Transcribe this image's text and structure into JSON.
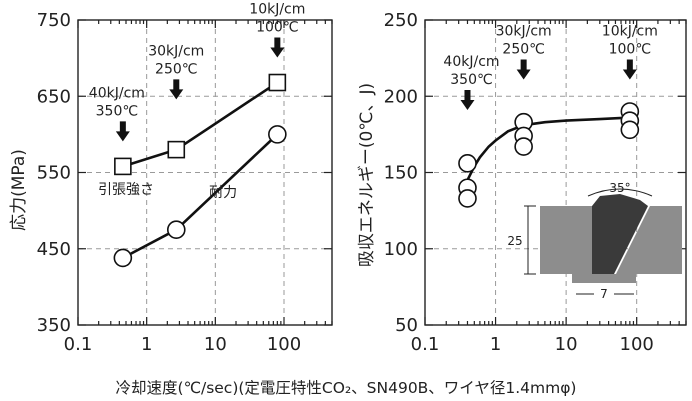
{
  "chart_data": [
    {
      "type": "line",
      "xscale": "log",
      "xlim": [
        0.1,
        500
      ],
      "ylim": [
        350,
        750
      ],
      "xticks": [
        {
          "v": 0.1,
          "label": "0.1"
        },
        {
          "v": 1,
          "label": "1"
        },
        {
          "v": 10,
          "label": "10"
        },
        {
          "v": 100,
          "label": "100"
        }
      ],
      "yticks": [
        {
          "v": 350,
          "label": "350"
        },
        {
          "v": 450,
          "label": "450"
        },
        {
          "v": 550,
          "label": "550"
        },
        {
          "v": 650,
          "label": "650"
        },
        {
          "v": 750,
          "label": "750"
        }
      ],
      "ylabel": "応力(MPa)",
      "grid": true,
      "series": [
        {
          "name": "引張強さ",
          "marker": "square",
          "x": [
            0.45,
            2.7,
            80
          ],
          "y": [
            558,
            580,
            668
          ]
        },
        {
          "name": "耐力",
          "marker": "circle",
          "x": [
            0.45,
            2.7,
            80
          ],
          "y": [
            438,
            475,
            600
          ]
        }
      ],
      "annotations": [
        {
          "line1": "40kJ/cm",
          "line2": "350℃",
          "x": 0.45
        },
        {
          "line1": "30kJ/cm",
          "line2": "250℃",
          "x": 2.7
        },
        {
          "line1": "10kJ/cm",
          "line2": "100℃",
          "x": 80
        }
      ]
    },
    {
      "type": "scatter",
      "xscale": "log",
      "xlim": [
        0.1,
        500
      ],
      "ylim": [
        50,
        250
      ],
      "xticks": [
        {
          "v": 0.1,
          "label": "0.1"
        },
        {
          "v": 1,
          "label": "1"
        },
        {
          "v": 10,
          "label": "10"
        },
        {
          "v": 100,
          "label": "100"
        }
      ],
      "yticks": [
        {
          "v": 50,
          "label": "50"
        },
        {
          "v": 100,
          "label": "100"
        },
        {
          "v": 150,
          "label": "150"
        },
        {
          "v": 200,
          "label": "200"
        },
        {
          "v": 250,
          "label": "250"
        }
      ],
      "ylabel": "吸収エネルギー(0℃、J)",
      "grid": true,
      "points": [
        {
          "x": 0.4,
          "y": 156
        },
        {
          "x": 0.4,
          "y": 140
        },
        {
          "x": 0.4,
          "y": 133
        },
        {
          "x": 2.5,
          "y": 183
        },
        {
          "x": 2.5,
          "y": 174
        },
        {
          "x": 2.5,
          "y": 167
        },
        {
          "x": 80,
          "y": 190
        },
        {
          "x": 80,
          "y": 184
        },
        {
          "x": 80,
          "y": 178
        }
      ],
      "fit_curve": {
        "x": [
          0.4,
          0.5,
          0.6,
          0.8,
          1.0,
          1.5,
          2.5,
          5,
          10,
          30,
          80
        ],
        "y": [
          145,
          154,
          160,
          167,
          171,
          177,
          181,
          183,
          184,
          185,
          186
        ]
      },
      "annotations": [
        {
          "line1": "40kJ/cm",
          "line2": "350℃",
          "x": 0.4
        },
        {
          "line1": "30kJ/cm",
          "line2": "250℃",
          "x": 2.5
        },
        {
          "line1": "10kJ/cm",
          "line2": "100℃",
          "x": 80
        }
      ],
      "inset": {
        "angle_label": "35°",
        "height_label": "25",
        "width_label": "7"
      }
    }
  ],
  "caption": "冷却速度(℃/sec)(定電圧特性CO₂、SN490B、ワイヤ径1.4mmφ)"
}
